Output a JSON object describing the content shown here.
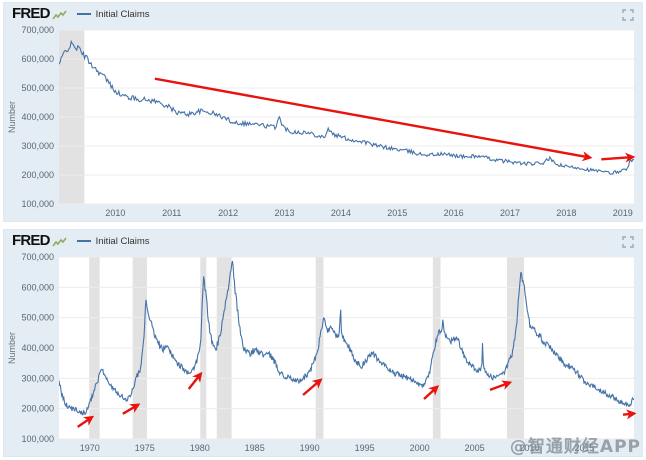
{
  "watermark": {
    "text": "@智通财经APP"
  },
  "colors": {
    "panel_bg": "#e4edf4",
    "plot_bg": "#ffffff",
    "grid": "#ececec",
    "recession_band": "#e2e2e2",
    "line": "#4572a7",
    "arrow": "#e8130d",
    "tick_text": "#5b6670",
    "logo_text": "#111111",
    "icon": "#9aa7b4"
  },
  "panels": [
    {
      "logo": "FRED",
      "legend_label": "Initial Claims"
    },
    {
      "logo": "FRED",
      "legend_label": "Initial Claims"
    }
  ],
  "icons": {
    "expand": "fullscreen-corners",
    "legend_sample": "line-swatch",
    "fred_sparkline": "mini-line-chart"
  },
  "chart_data": [
    {
      "type": "line",
      "title": "",
      "ylabel": "Number",
      "x_range": [
        2009.0,
        2019.2
      ],
      "y_range": [
        100000,
        700000
      ],
      "x_ticks": [
        2010,
        2011,
        2012,
        2013,
        2014,
        2015,
        2016,
        2017,
        2018,
        2019
      ],
      "y_ticks": [
        100000,
        200000,
        300000,
        400000,
        500000,
        600000,
        700000
      ],
      "recession_bands": [
        [
          2009.0,
          2009.45
        ]
      ],
      "arrows": [
        {
          "x1": 2010.7,
          "y1": 532000,
          "x2": 2018.42,
          "y2": 260000
        },
        {
          "x1": 2018.62,
          "y1": 254000,
          "x2": 2019.18,
          "y2": 262000
        }
      ],
      "series": [
        {
          "name": "Initial Claims",
          "noise": 7000,
          "samples": 520,
          "anchors": [
            [
              2009.0,
              580000
            ],
            [
              2009.1,
              625000
            ],
            [
              2009.22,
              650000
            ],
            [
              2009.35,
              635000
            ],
            [
              2009.5,
              600000
            ],
            [
              2009.65,
              565000
            ],
            [
              2009.8,
              540000
            ],
            [
              2009.95,
              500000
            ],
            [
              2010.1,
              475000
            ],
            [
              2010.3,
              465000
            ],
            [
              2010.5,
              460000
            ],
            [
              2010.7,
              455000
            ],
            [
              2010.9,
              440000
            ],
            [
              2011.1,
              415000
            ],
            [
              2011.3,
              410000
            ],
            [
              2011.5,
              420000
            ],
            [
              2011.7,
              415000
            ],
            [
              2011.9,
              400000
            ],
            [
              2012.1,
              382000
            ],
            [
              2012.3,
              378000
            ],
            [
              2012.5,
              375000
            ],
            [
              2012.7,
              368000
            ],
            [
              2012.85,
              365000
            ],
            [
              2012.9,
              410000
            ],
            [
              2012.95,
              370000
            ],
            [
              2013.1,
              350000
            ],
            [
              2013.3,
              348000
            ],
            [
              2013.5,
              342000
            ],
            [
              2013.7,
              330000
            ],
            [
              2013.78,
              360000
            ],
            [
              2013.85,
              340000
            ],
            [
              2014.0,
              332000
            ],
            [
              2014.2,
              320000
            ],
            [
              2014.4,
              315000
            ],
            [
              2014.6,
              302000
            ],
            [
              2014.8,
              295000
            ],
            [
              2015.0,
              288000
            ],
            [
              2015.2,
              282000
            ],
            [
              2015.4,
              272000
            ],
            [
              2015.6,
              270000
            ],
            [
              2015.8,
              272000
            ],
            [
              2016.0,
              268000
            ],
            [
              2016.2,
              262000
            ],
            [
              2016.4,
              266000
            ],
            [
              2016.6,
              258000
            ],
            [
              2016.8,
              250000
            ],
            [
              2017.0,
              246000
            ],
            [
              2017.2,
              240000
            ],
            [
              2017.4,
              238000
            ],
            [
              2017.6,
              242000
            ],
            [
              2017.7,
              258000
            ],
            [
              2017.8,
              238000
            ],
            [
              2018.0,
              228000
            ],
            [
              2018.2,
              226000
            ],
            [
              2018.4,
              218000
            ],
            [
              2018.6,
              212000
            ],
            [
              2018.8,
              206000
            ],
            [
              2018.95,
              214000
            ],
            [
              2019.05,
              218000
            ],
            [
              2019.14,
              248000
            ]
          ]
        }
      ]
    },
    {
      "type": "line",
      "title": "",
      "ylabel": "Number",
      "x_range": [
        1967.2,
        2019.5
      ],
      "y_range": [
        100000,
        700000
      ],
      "x_ticks": [
        1970,
        1975,
        1980,
        1985,
        1990,
        1995,
        2000,
        2005,
        2010,
        2015
      ],
      "y_ticks": [
        100000,
        200000,
        300000,
        400000,
        500000,
        600000,
        700000
      ],
      "recession_bands": [
        [
          1969.95,
          1970.9
        ],
        [
          1973.9,
          1975.2
        ],
        [
          1980.05,
          1980.6
        ],
        [
          1981.55,
          1982.9
        ],
        [
          1990.55,
          1991.25
        ],
        [
          2001.2,
          2001.9
        ],
        [
          2007.95,
          2009.5
        ]
      ],
      "arrows": [
        {
          "x1": 1968.9,
          "y1": 140000,
          "x2": 1970.2,
          "y2": 172000
        },
        {
          "x1": 1973.0,
          "y1": 183000,
          "x2": 1974.4,
          "y2": 213000
        },
        {
          "x1": 1979.0,
          "y1": 265000,
          "x2": 1980.1,
          "y2": 315000
        },
        {
          "x1": 1989.4,
          "y1": 245000,
          "x2": 1991.0,
          "y2": 295000
        },
        {
          "x1": 2000.4,
          "y1": 232000,
          "x2": 2001.6,
          "y2": 272000
        },
        {
          "x1": 2006.4,
          "y1": 262000,
          "x2": 2008.2,
          "y2": 286000
        },
        {
          "x1": 2018.5,
          "y1": 180000,
          "x2": 2019.5,
          "y2": 184000
        }
      ],
      "series": [
        {
          "name": "Initial Claims",
          "noise": 9000,
          "samples": 840,
          "anchors": [
            [
              1967.2,
              300000
            ],
            [
              1967.4,
              250000
            ],
            [
              1967.8,
              215000
            ],
            [
              1968.3,
              200000
            ],
            [
              1968.8,
              195000
            ],
            [
              1969.3,
              185000
            ],
            [
              1969.7,
              190000
            ],
            [
              1970.0,
              220000
            ],
            [
              1970.4,
              260000
            ],
            [
              1970.8,
              300000
            ],
            [
              1971.1,
              330000
            ],
            [
              1971.4,
              305000
            ],
            [
              1971.8,
              280000
            ],
            [
              1972.2,
              265000
            ],
            [
              1972.6,
              250000
            ],
            [
              1973.0,
              240000
            ],
            [
              1973.4,
              230000
            ],
            [
              1973.8,
              250000
            ],
            [
              1974.2,
              300000
            ],
            [
              1974.6,
              330000
            ],
            [
              1974.9,
              420000
            ],
            [
              1975.1,
              555000
            ],
            [
              1975.4,
              510000
            ],
            [
              1975.8,
              450000
            ],
            [
              1976.2,
              420000
            ],
            [
              1976.6,
              395000
            ],
            [
              1977.0,
              405000
            ],
            [
              1977.4,
              380000
            ],
            [
              1977.9,
              350000
            ],
            [
              1978.4,
              335000
            ],
            [
              1978.9,
              320000
            ],
            [
              1979.4,
              325000
            ],
            [
              1979.8,
              360000
            ],
            [
              1980.1,
              430000
            ],
            [
              1980.35,
              640000
            ],
            [
              1980.6,
              560000
            ],
            [
              1980.9,
              460000
            ],
            [
              1981.2,
              410000
            ],
            [
              1981.5,
              400000
            ],
            [
              1981.9,
              445000
            ],
            [
              1982.3,
              540000
            ],
            [
              1982.7,
              620000
            ],
            [
              1982.95,
              690000
            ],
            [
              1983.2,
              600000
            ],
            [
              1983.6,
              470000
            ],
            [
              1984.0,
              400000
            ],
            [
              1984.5,
              380000
            ],
            [
              1985.0,
              395000
            ],
            [
              1985.4,
              385000
            ],
            [
              1985.9,
              375000
            ],
            [
              1986.3,
              380000
            ],
            [
              1986.8,
              355000
            ],
            [
              1987.3,
              320000
            ],
            [
              1987.8,
              305000
            ],
            [
              1988.3,
              298000
            ],
            [
              1988.8,
              292000
            ],
            [
              1989.3,
              295000
            ],
            [
              1989.8,
              315000
            ],
            [
              1990.3,
              345000
            ],
            [
              1990.7,
              380000
            ],
            [
              1991.0,
              450000
            ],
            [
              1991.3,
              495000
            ],
            [
              1991.6,
              455000
            ],
            [
              1992.0,
              470000
            ],
            [
              1992.4,
              440000
            ],
            [
              1992.72,
              445000
            ],
            [
              1992.8,
              560000
            ],
            [
              1992.88,
              445000
            ],
            [
              1993.2,
              420000
            ],
            [
              1993.7,
              395000
            ],
            [
              1994.2,
              355000
            ],
            [
              1994.7,
              340000
            ],
            [
              1995.2,
              360000
            ],
            [
              1995.7,
              385000
            ],
            [
              1996.3,
              360000
            ],
            [
              1996.8,
              340000
            ],
            [
              1997.3,
              325000
            ],
            [
              1997.8,
              315000
            ],
            [
              1998.3,
              310000
            ],
            [
              1998.8,
              302000
            ],
            [
              1999.3,
              298000
            ],
            [
              1999.8,
              285000
            ],
            [
              2000.2,
              272000
            ],
            [
              2000.6,
              290000
            ],
            [
              2000.9,
              320000
            ],
            [
              2001.2,
              380000
            ],
            [
              2001.5,
              420000
            ],
            [
              2001.75,
              460000
            ],
            [
              2002.0,
              450000
            ],
            [
              2002.1,
              490000
            ],
            [
              2002.3,
              440000
            ],
            [
              2002.7,
              420000
            ],
            [
              2003.1,
              430000
            ],
            [
              2003.4,
              440000
            ],
            [
              2003.8,
              395000
            ],
            [
              2004.2,
              360000
            ],
            [
              2004.7,
              345000
            ],
            [
              2005.1,
              330000
            ],
            [
              2005.5,
              328000
            ],
            [
              2005.65,
              330000
            ],
            [
              2005.72,
              425000
            ],
            [
              2005.8,
              335000
            ],
            [
              2006.2,
              308000
            ],
            [
              2006.7,
              302000
            ],
            [
              2007.2,
              310000
            ],
            [
              2007.7,
              315000
            ],
            [
              2008.0,
              345000
            ],
            [
              2008.4,
              380000
            ],
            [
              2008.8,
              470000
            ],
            [
              2009.0,
              560000
            ],
            [
              2009.2,
              650000
            ],
            [
              2009.45,
              620000
            ],
            [
              2009.7,
              550000
            ],
            [
              2010.0,
              480000
            ],
            [
              2010.4,
              460000
            ],
            [
              2010.9,
              440000
            ],
            [
              2011.3,
              420000
            ],
            [
              2011.8,
              405000
            ],
            [
              2012.2,
              380000
            ],
            [
              2012.7,
              370000
            ],
            [
              2013.1,
              350000
            ],
            [
              2013.6,
              340000
            ],
            [
              2014.1,
              330000
            ],
            [
              2014.6,
              305000
            ],
            [
              2015.1,
              285000
            ],
            [
              2015.6,
              275000
            ],
            [
              2016.1,
              268000
            ],
            [
              2016.6,
              258000
            ],
            [
              2017.1,
              245000
            ],
            [
              2017.6,
              240000
            ],
            [
              2018.0,
              228000
            ],
            [
              2018.5,
              218000
            ],
            [
              2018.9,
              210000
            ],
            [
              2019.15,
              215000
            ],
            [
              2019.35,
              230000
            ]
          ]
        }
      ]
    }
  ]
}
